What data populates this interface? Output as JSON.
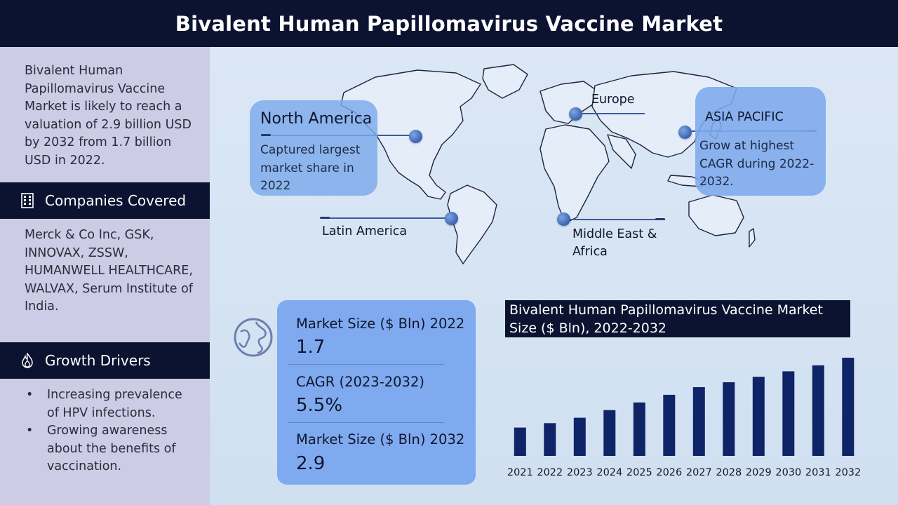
{
  "header": {
    "title": "Bivalent Human Papillomavirus Vaccine Market"
  },
  "sidebar": {
    "intro": "Bivalent Human Papillomavirus Vaccine Market is likely to reach a valuation of 2.9 billion USD by 2032 from 1.7 billion USD in 2022.",
    "companies_title": "Companies Covered",
    "companies_text": "Merck & Co Inc, GSK, INNOVAX, ZSSW, HUMANWELL HEALTHCARE, WALVAX, Serum Institute of India.",
    "growth_title": "Growth Drivers",
    "growth_items": [
      "Increasing prevalence of HPV infections.",
      "Growing awareness about the benefits of vaccination."
    ],
    "icons": {
      "companies": "building-icon",
      "growth": "flame-icon"
    }
  },
  "map": {
    "north_america": {
      "title": "North America",
      "desc": "Captured largest market share in 2022"
    },
    "europe": {
      "label": "Europe"
    },
    "asia_pacific": {
      "title": "ASIA PACIFIC",
      "desc": "Grow at highest CAGR during 2022-2032."
    },
    "latin_america": {
      "label": "Latin America"
    },
    "mea": {
      "label": "Middle East & Africa"
    }
  },
  "stats": {
    "size_2022_label": "Market Size ($ Bln) 2022",
    "size_2022_value": "1.7",
    "cagr_label": "CAGR (2023-2032)",
    "cagr_value": "5.5%",
    "size_2032_label": "Market Size ($ Bln) 2032",
    "size_2032_value": "2.9",
    "icon": "globe-icon"
  },
  "colors": {
    "navy": "#0c1330",
    "bar": "#0f2466",
    "callout": "#7faaef",
    "sidebar": "#cccce6"
  },
  "chart_data": {
    "type": "bar",
    "title": "Bivalent Human Papillomavirus Vaccine Market Size ($ Bln), 2022-2032",
    "categories": [
      "2021",
      "2022",
      "2023",
      "2024",
      "2025",
      "2026",
      "2027",
      "2028",
      "2029",
      "2030",
      "2031",
      "2032"
    ],
    "values": [
      1.62,
      1.7,
      1.8,
      1.94,
      2.08,
      2.22,
      2.36,
      2.45,
      2.55,
      2.65,
      2.76,
      2.9
    ],
    "ylim": [
      1.1,
      2.9
    ],
    "xlabel": "",
    "ylabel": "",
    "grid": false,
    "legend": "none"
  }
}
